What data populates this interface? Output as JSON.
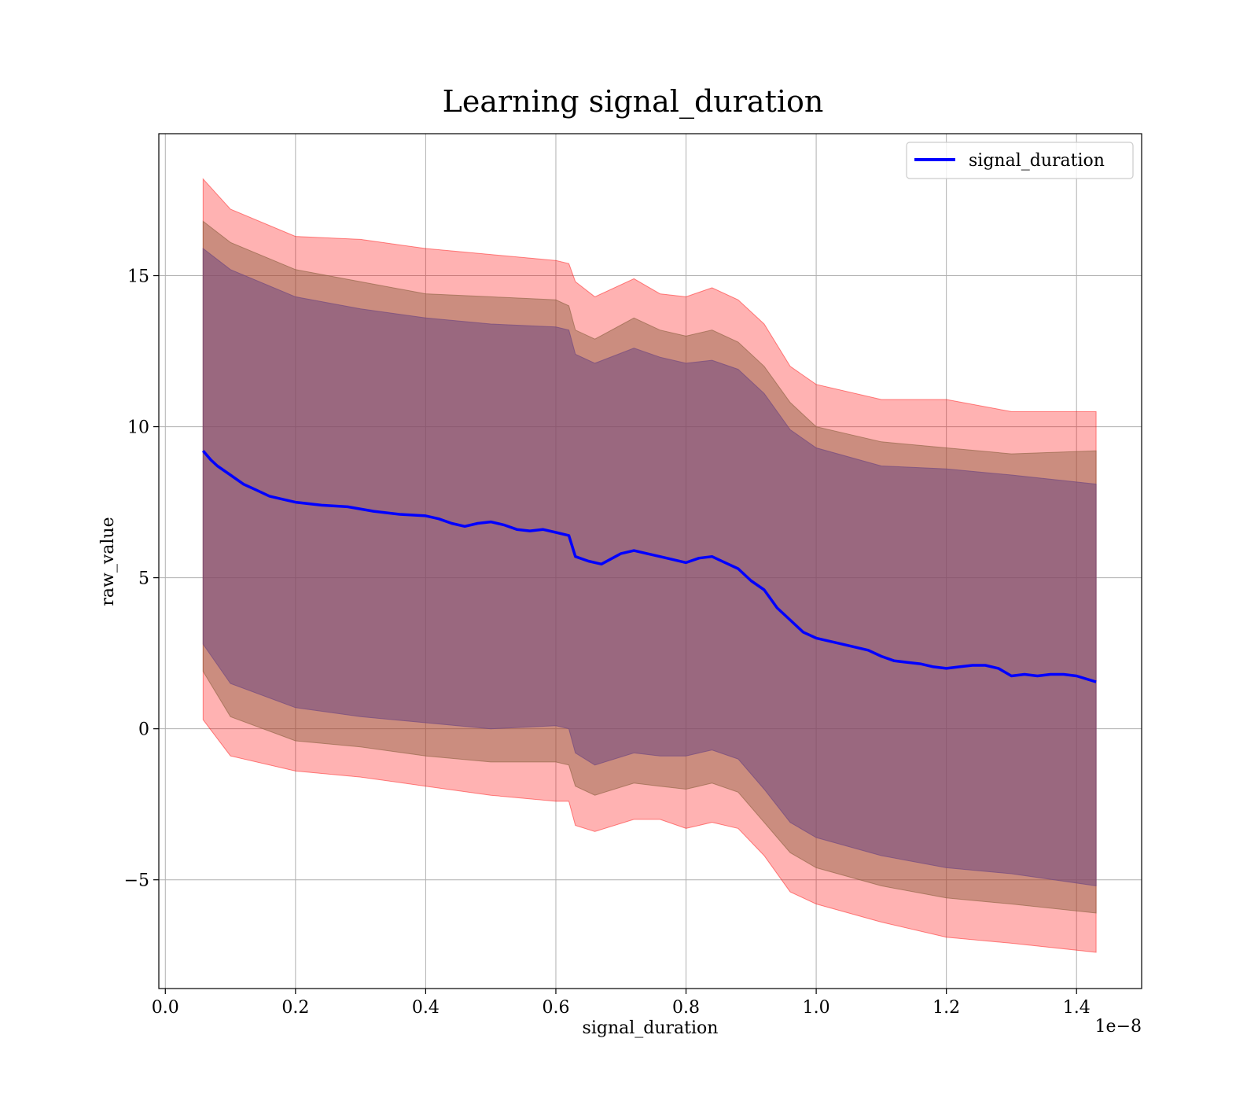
{
  "chart_data": {
    "type": "line",
    "title": "Learning signal_duration",
    "xlabel": "signal_duration",
    "ylabel": "raw_value",
    "x_offset_label": "1e−8",
    "x_tick_labels": [
      "0.0",
      "0.2",
      "0.4",
      "0.6",
      "0.8",
      "1.0",
      "1.2",
      "1.4"
    ],
    "x_ticks": [
      0.0,
      0.2,
      0.4,
      0.6,
      0.8,
      1.0,
      1.2,
      1.4
    ],
    "y_tick_labels": [
      "−5",
      "0",
      "5",
      "10",
      "15"
    ],
    "y_ticks": [
      -5,
      0,
      5,
      10,
      15
    ],
    "xlim": [
      -0.01,
      1.5
    ],
    "ylim": [
      -8.6,
      19.7
    ],
    "grid": true,
    "legend_position": "top-right",
    "x_scale_multiplier": "1e-8",
    "series": [
      {
        "name": "signal_duration",
        "color": "#0000ff",
        "x": [
          0.058,
          0.07,
          0.08,
          0.1,
          0.12,
          0.14,
          0.16,
          0.18,
          0.2,
          0.24,
          0.28,
          0.32,
          0.36,
          0.4,
          0.42,
          0.44,
          0.46,
          0.48,
          0.5,
          0.52,
          0.54,
          0.56,
          0.58,
          0.6,
          0.62,
          0.63,
          0.65,
          0.67,
          0.7,
          0.72,
          0.74,
          0.76,
          0.78,
          0.8,
          0.82,
          0.84,
          0.86,
          0.88,
          0.9,
          0.92,
          0.94,
          0.96,
          0.98,
          1.0,
          1.04,
          1.08,
          1.1,
          1.12,
          1.14,
          1.16,
          1.18,
          1.2,
          1.22,
          1.24,
          1.26,
          1.28,
          1.3,
          1.32,
          1.34,
          1.36,
          1.38,
          1.4,
          1.43
        ],
        "values": [
          9.2,
          8.9,
          8.7,
          8.4,
          8.1,
          7.9,
          7.7,
          7.6,
          7.5,
          7.4,
          7.35,
          7.2,
          7.1,
          7.05,
          6.95,
          6.8,
          6.7,
          6.8,
          6.85,
          6.75,
          6.6,
          6.55,
          6.6,
          6.5,
          6.4,
          5.7,
          5.55,
          5.45,
          5.8,
          5.9,
          5.8,
          5.7,
          5.6,
          5.5,
          5.65,
          5.7,
          5.5,
          5.3,
          4.9,
          4.6,
          4.0,
          3.6,
          3.2,
          3.0,
          2.8,
          2.6,
          2.4,
          2.25,
          2.2,
          2.15,
          2.05,
          2.0,
          2.05,
          2.1,
          2.1,
          2.0,
          1.75,
          1.8,
          1.75,
          1.8,
          1.8,
          1.75,
          1.55
        ]
      }
    ],
    "bands": [
      {
        "color": "#ff0000",
        "opacity": 0.3,
        "x": [
          0.058,
          0.1,
          0.2,
          0.3,
          0.4,
          0.5,
          0.6,
          0.62,
          0.63,
          0.66,
          0.72,
          0.76,
          0.8,
          0.84,
          0.88,
          0.92,
          0.96,
          1.0,
          1.1,
          1.2,
          1.3,
          1.43
        ],
        "upper": [
          18.2,
          17.2,
          16.3,
          16.2,
          15.9,
          15.7,
          15.5,
          15.4,
          14.8,
          14.3,
          14.9,
          14.4,
          14.3,
          14.6,
          14.2,
          13.4,
          12.0,
          11.4,
          10.9,
          10.9,
          10.5,
          10.5
        ],
        "lower": [
          0.3,
          -0.9,
          -1.4,
          -1.6,
          -1.9,
          -2.2,
          -2.4,
          -2.4,
          -3.2,
          -3.4,
          -3.0,
          -3.0,
          -3.3,
          -3.1,
          -3.3,
          -4.2,
          -5.4,
          -5.8,
          -6.4,
          -6.9,
          -7.1,
          -7.4
        ]
      },
      {
        "color": "#8b6040",
        "opacity": 0.45,
        "x": [
          0.058,
          0.1,
          0.2,
          0.3,
          0.4,
          0.5,
          0.6,
          0.62,
          0.63,
          0.66,
          0.72,
          0.76,
          0.8,
          0.84,
          0.88,
          0.92,
          0.96,
          1.0,
          1.1,
          1.2,
          1.3,
          1.43
        ],
        "upper": [
          16.8,
          16.1,
          15.2,
          14.8,
          14.4,
          14.3,
          14.2,
          14.0,
          13.2,
          12.9,
          13.6,
          13.2,
          13.0,
          13.2,
          12.8,
          12.0,
          10.8,
          10.0,
          9.5,
          9.3,
          9.1,
          9.2
        ],
        "lower": [
          1.9,
          0.4,
          -0.4,
          -0.6,
          -0.9,
          -1.1,
          -1.1,
          -1.2,
          -1.9,
          -2.2,
          -1.8,
          -1.9,
          -2.0,
          -1.8,
          -2.1,
          -3.1,
          -4.1,
          -4.6,
          -5.2,
          -5.6,
          -5.8,
          -6.1
        ]
      },
      {
        "color": "#734a80",
        "opacity": 0.55,
        "x": [
          0.058,
          0.1,
          0.2,
          0.3,
          0.4,
          0.5,
          0.6,
          0.62,
          0.63,
          0.66,
          0.72,
          0.76,
          0.8,
          0.84,
          0.88,
          0.92,
          0.96,
          1.0,
          1.1,
          1.2,
          1.3,
          1.43
        ],
        "upper": [
          15.9,
          15.2,
          14.3,
          13.9,
          13.6,
          13.4,
          13.3,
          13.2,
          12.4,
          12.1,
          12.6,
          12.3,
          12.1,
          12.2,
          11.9,
          11.1,
          9.9,
          9.3,
          8.7,
          8.6,
          8.4,
          8.1
        ],
        "lower": [
          2.8,
          1.5,
          0.7,
          0.4,
          0.2,
          0.0,
          0.1,
          0.0,
          -0.8,
          -1.2,
          -0.8,
          -0.9,
          -0.9,
          -0.7,
          -1.0,
          -2.0,
          -3.1,
          -3.6,
          -4.2,
          -4.6,
          -4.8,
          -5.2
        ]
      }
    ]
  }
}
